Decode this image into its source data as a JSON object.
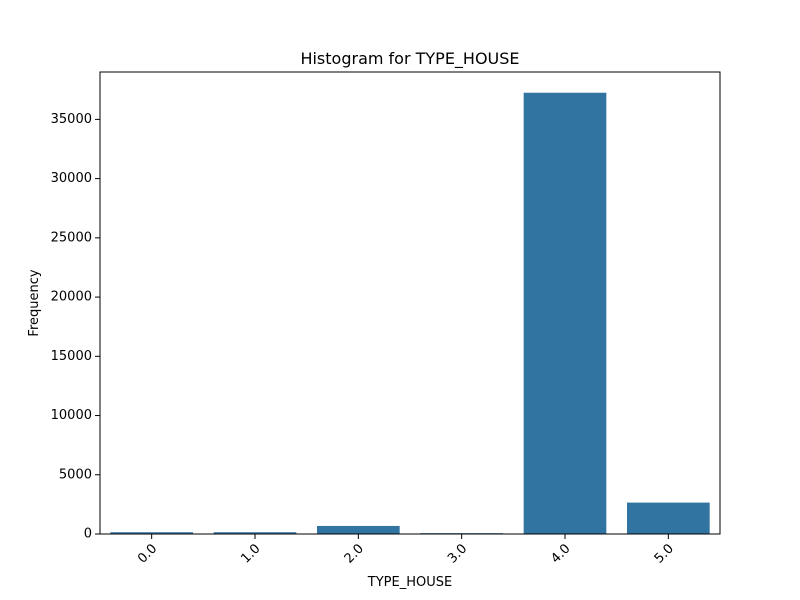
{
  "chart_data": {
    "type": "bar",
    "title": "Histogram for TYPE_HOUSE",
    "xlabel": "TYPE_HOUSE",
    "ylabel": "Frequency",
    "categories": [
      "0.0",
      "1.0",
      "2.0",
      "3.0",
      "4.0",
      "5.0"
    ],
    "values": [
      150,
      150,
      680,
      70,
      37250,
      2650
    ],
    "ylim": [
      0,
      39000
    ],
    "yticks": [
      0,
      5000,
      10000,
      15000,
      20000,
      25000,
      30000,
      35000
    ],
    "ytick_labels": [
      "0",
      "5000",
      "10000",
      "15000",
      "20000",
      "25000",
      "30000",
      "35000"
    ],
    "bar_color": "#3274a1",
    "grid": false,
    "xtick_rotation": 45
  }
}
